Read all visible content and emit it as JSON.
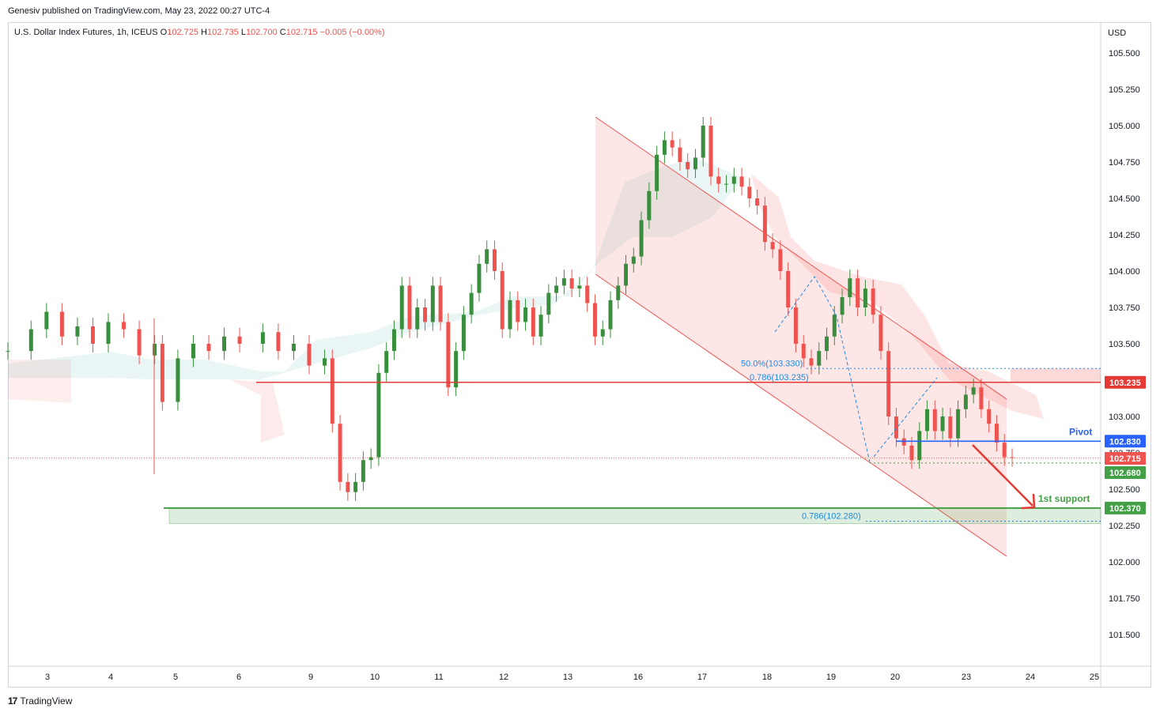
{
  "header": {
    "published_line": "Genesiv published on TradingView.com, May 23, 2022 00:27 UTC-4"
  },
  "legend": {
    "symbol": "U.S. Dollar Index Futures, 1h, ICEUS",
    "open_label": "O",
    "open": "102.725",
    "high_label": "H",
    "high": "102.735",
    "low_label": "L",
    "low": "102.700",
    "close_label": "C",
    "close": "102.715",
    "change": "−0.005 (−0.00%)"
  },
  "footer": {
    "brand": "TradingView",
    "logo": "17"
  },
  "colors": {
    "up": "#26a69a",
    "candle_up": "#388e3c",
    "down": "#ef5350",
    "resistance": "#e53935",
    "pivot": "#2962ff",
    "support": "#43a047",
    "channel": "#ef5350",
    "fib": "#1e88e5"
  },
  "chart_data": {
    "type": "candlestick",
    "currency": "USD",
    "ylim": [
      101.25,
      105.75
    ],
    "y_ticks": [
      "105.500",
      "105.250",
      "105.000",
      "104.750",
      "104.500",
      "104.250",
      "104.000",
      "103.750",
      "103.500",
      "103.250",
      "103.000",
      "102.750",
      "102.500",
      "102.250",
      "102.000",
      "101.750",
      "101.500"
    ],
    "x_ticks": [
      "3",
      "4",
      "5",
      "6",
      "9",
      "10",
      "11",
      "12",
      "13",
      "16",
      "17",
      "18",
      "19",
      "20",
      "23",
      "24",
      "25"
    ],
    "price_path": [
      [
        0,
        103.45
      ],
      [
        3,
        103.6
      ],
      [
        5,
        103.72
      ],
      [
        7,
        103.55
      ],
      [
        9,
        103.62
      ],
      [
        11,
        103.5
      ],
      [
        13,
        103.65
      ],
      [
        15,
        103.6
      ],
      [
        17,
        103.42
      ],
      [
        19,
        103.5
      ],
      [
        20,
        103.1
      ],
      [
        22,
        103.4
      ],
      [
        24,
        103.5
      ],
      [
        26,
        103.45
      ],
      [
        28,
        103.55
      ],
      [
        30,
        103.5
      ],
      [
        33,
        103.58
      ],
      [
        35,
        103.45
      ],
      [
        37,
        103.5
      ],
      [
        39,
        103.35
      ],
      [
        41,
        103.4
      ],
      [
        42,
        102.95
      ],
      [
        43,
        102.55
      ],
      [
        44,
        102.48
      ],
      [
        45,
        102.55
      ],
      [
        46,
        102.7
      ],
      [
        47,
        102.72
      ],
      [
        48,
        103.3
      ],
      [
        49,
        103.45
      ],
      [
        50,
        103.6
      ],
      [
        51,
        103.9
      ],
      [
        52,
        103.6
      ],
      [
        53,
        103.75
      ],
      [
        54,
        103.65
      ],
      [
        55,
        103.9
      ],
      [
        56,
        103.65
      ],
      [
        57,
        103.2
      ],
      [
        58,
        103.45
      ],
      [
        59,
        103.7
      ],
      [
        60,
        103.85
      ],
      [
        61,
        104.05
      ],
      [
        62,
        104.15
      ],
      [
        63,
        104.0
      ],
      [
        64,
        103.6
      ],
      [
        65,
        103.8
      ],
      [
        66,
        103.65
      ],
      [
        67,
        103.75
      ],
      [
        68,
        103.55
      ],
      [
        69,
        103.7
      ],
      [
        70,
        103.85
      ],
      [
        71,
        103.9
      ],
      [
        72,
        103.95
      ],
      [
        73,
        103.88
      ],
      [
        74,
        103.9
      ],
      [
        75,
        103.78
      ],
      [
        76,
        103.55
      ],
      [
        77,
        103.6
      ],
      [
        78,
        103.8
      ],
      [
        79,
        103.9
      ],
      [
        80,
        104.05
      ],
      [
        81,
        104.1
      ],
      [
        82,
        104.35
      ],
      [
        83,
        104.55
      ],
      [
        84,
        104.8
      ],
      [
        85,
        104.9
      ],
      [
        86,
        104.85
      ],
      [
        87,
        104.75
      ],
      [
        88,
        104.7
      ],
      [
        89,
        104.78
      ],
      [
        90,
        105.0
      ],
      [
        91,
        104.65
      ],
      [
        92,
        104.6
      ],
      [
        93,
        104.6
      ],
      [
        94,
        104.65
      ],
      [
        95,
        104.58
      ],
      [
        96,
        104.5
      ],
      [
        97,
        104.45
      ],
      [
        98,
        104.2
      ],
      [
        99,
        104.15
      ],
      [
        100,
        104.0
      ],
      [
        101,
        103.75
      ],
      [
        102,
        103.5
      ],
      [
        103,
        103.4
      ],
      [
        104,
        103.35
      ],
      [
        105,
        103.45
      ],
      [
        106,
        103.55
      ],
      [
        107,
        103.7
      ],
      [
        108,
        103.82
      ],
      [
        109,
        103.95
      ],
      [
        110,
        103.75
      ],
      [
        111,
        103.88
      ],
      [
        112,
        103.7
      ],
      [
        113,
        103.45
      ],
      [
        114,
        103.0
      ],
      [
        115,
        102.85
      ],
      [
        116,
        102.8
      ],
      [
        117,
        102.7
      ],
      [
        118,
        102.9
      ],
      [
        119,
        103.05
      ],
      [
        120,
        102.9
      ],
      [
        121,
        103.0
      ],
      [
        122,
        102.85
      ],
      [
        123,
        103.05
      ],
      [
        124,
        103.15
      ],
      [
        125,
        103.2
      ],
      [
        126,
        103.05
      ],
      [
        127,
        102.95
      ],
      [
        128,
        102.82
      ],
      [
        129,
        102.72
      ],
      [
        130,
        102.715
      ]
    ],
    "channel": {
      "upper": [
        [
          90,
          105.05
        ],
        [
          150,
          103.1
        ]
      ],
      "lower": [
        [
          90,
          104.0
        ],
        [
          150,
          102.05
        ]
      ]
    },
    "levels": [
      {
        "name": "resistance",
        "price": 103.235,
        "label": "103.235"
      },
      {
        "name": "pivot",
        "price": 102.83,
        "label": "102.830",
        "text": "Pivot"
      },
      {
        "name": "last",
        "price": 102.715,
        "label": "102.715"
      },
      {
        "name": "low",
        "price": 102.68,
        "label": "102.680"
      },
      {
        "name": "support",
        "price": 102.37,
        "label": "102.370",
        "text": "1st support"
      }
    ],
    "fib_labels": [
      {
        "text": "50.0%(103.330)",
        "price": 103.33
      },
      {
        "text": "0.786(103.235)",
        "price": 103.235
      },
      {
        "text": "0.786(102.280)",
        "price": 102.28
      }
    ]
  }
}
